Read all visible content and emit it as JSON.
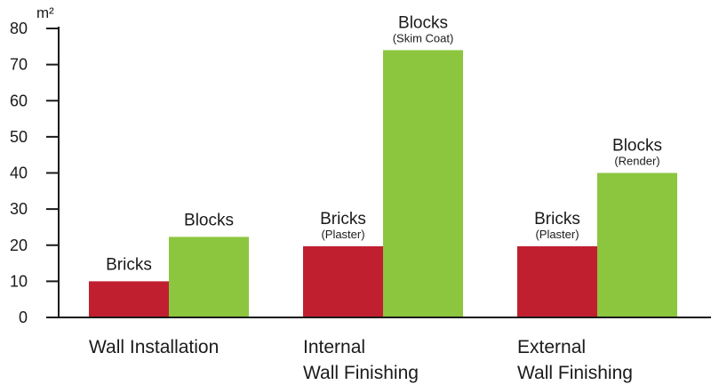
{
  "chart_data": {
    "type": "bar",
    "unit_label": "m²",
    "ylim": [
      0,
      80
    ],
    "yticks": [
      "0",
      "10",
      "20",
      "30",
      "40",
      "50",
      "60",
      "70",
      "80"
    ],
    "grid": false,
    "groups": [
      {
        "category": [
          "Wall Installation"
        ],
        "bars": [
          {
            "label": "Bricks",
            "sublabel": "",
            "value": 10,
            "color": "#c01f30"
          },
          {
            "label": "Blocks",
            "sublabel": "",
            "value": 22.3,
            "color": "#8cc63f"
          }
        ]
      },
      {
        "category": [
          "Internal",
          "Wall Finishing"
        ],
        "bars": [
          {
            "label": "Bricks",
            "sublabel": "(Plaster)",
            "value": 19.7,
            "color": "#c01f30"
          },
          {
            "label": "Blocks",
            "sublabel": "(Skim Coat)",
            "value": 74,
            "color": "#8cc63f"
          }
        ]
      },
      {
        "category": [
          "External",
          "Wall Finishing"
        ],
        "bars": [
          {
            "label": "Bricks",
            "sublabel": "(Plaster)",
            "value": 19.7,
            "color": "#c01f30"
          },
          {
            "label": "Blocks",
            "sublabel": "(Render)",
            "value": 40,
            "color": "#8cc63f"
          }
        ]
      }
    ]
  }
}
